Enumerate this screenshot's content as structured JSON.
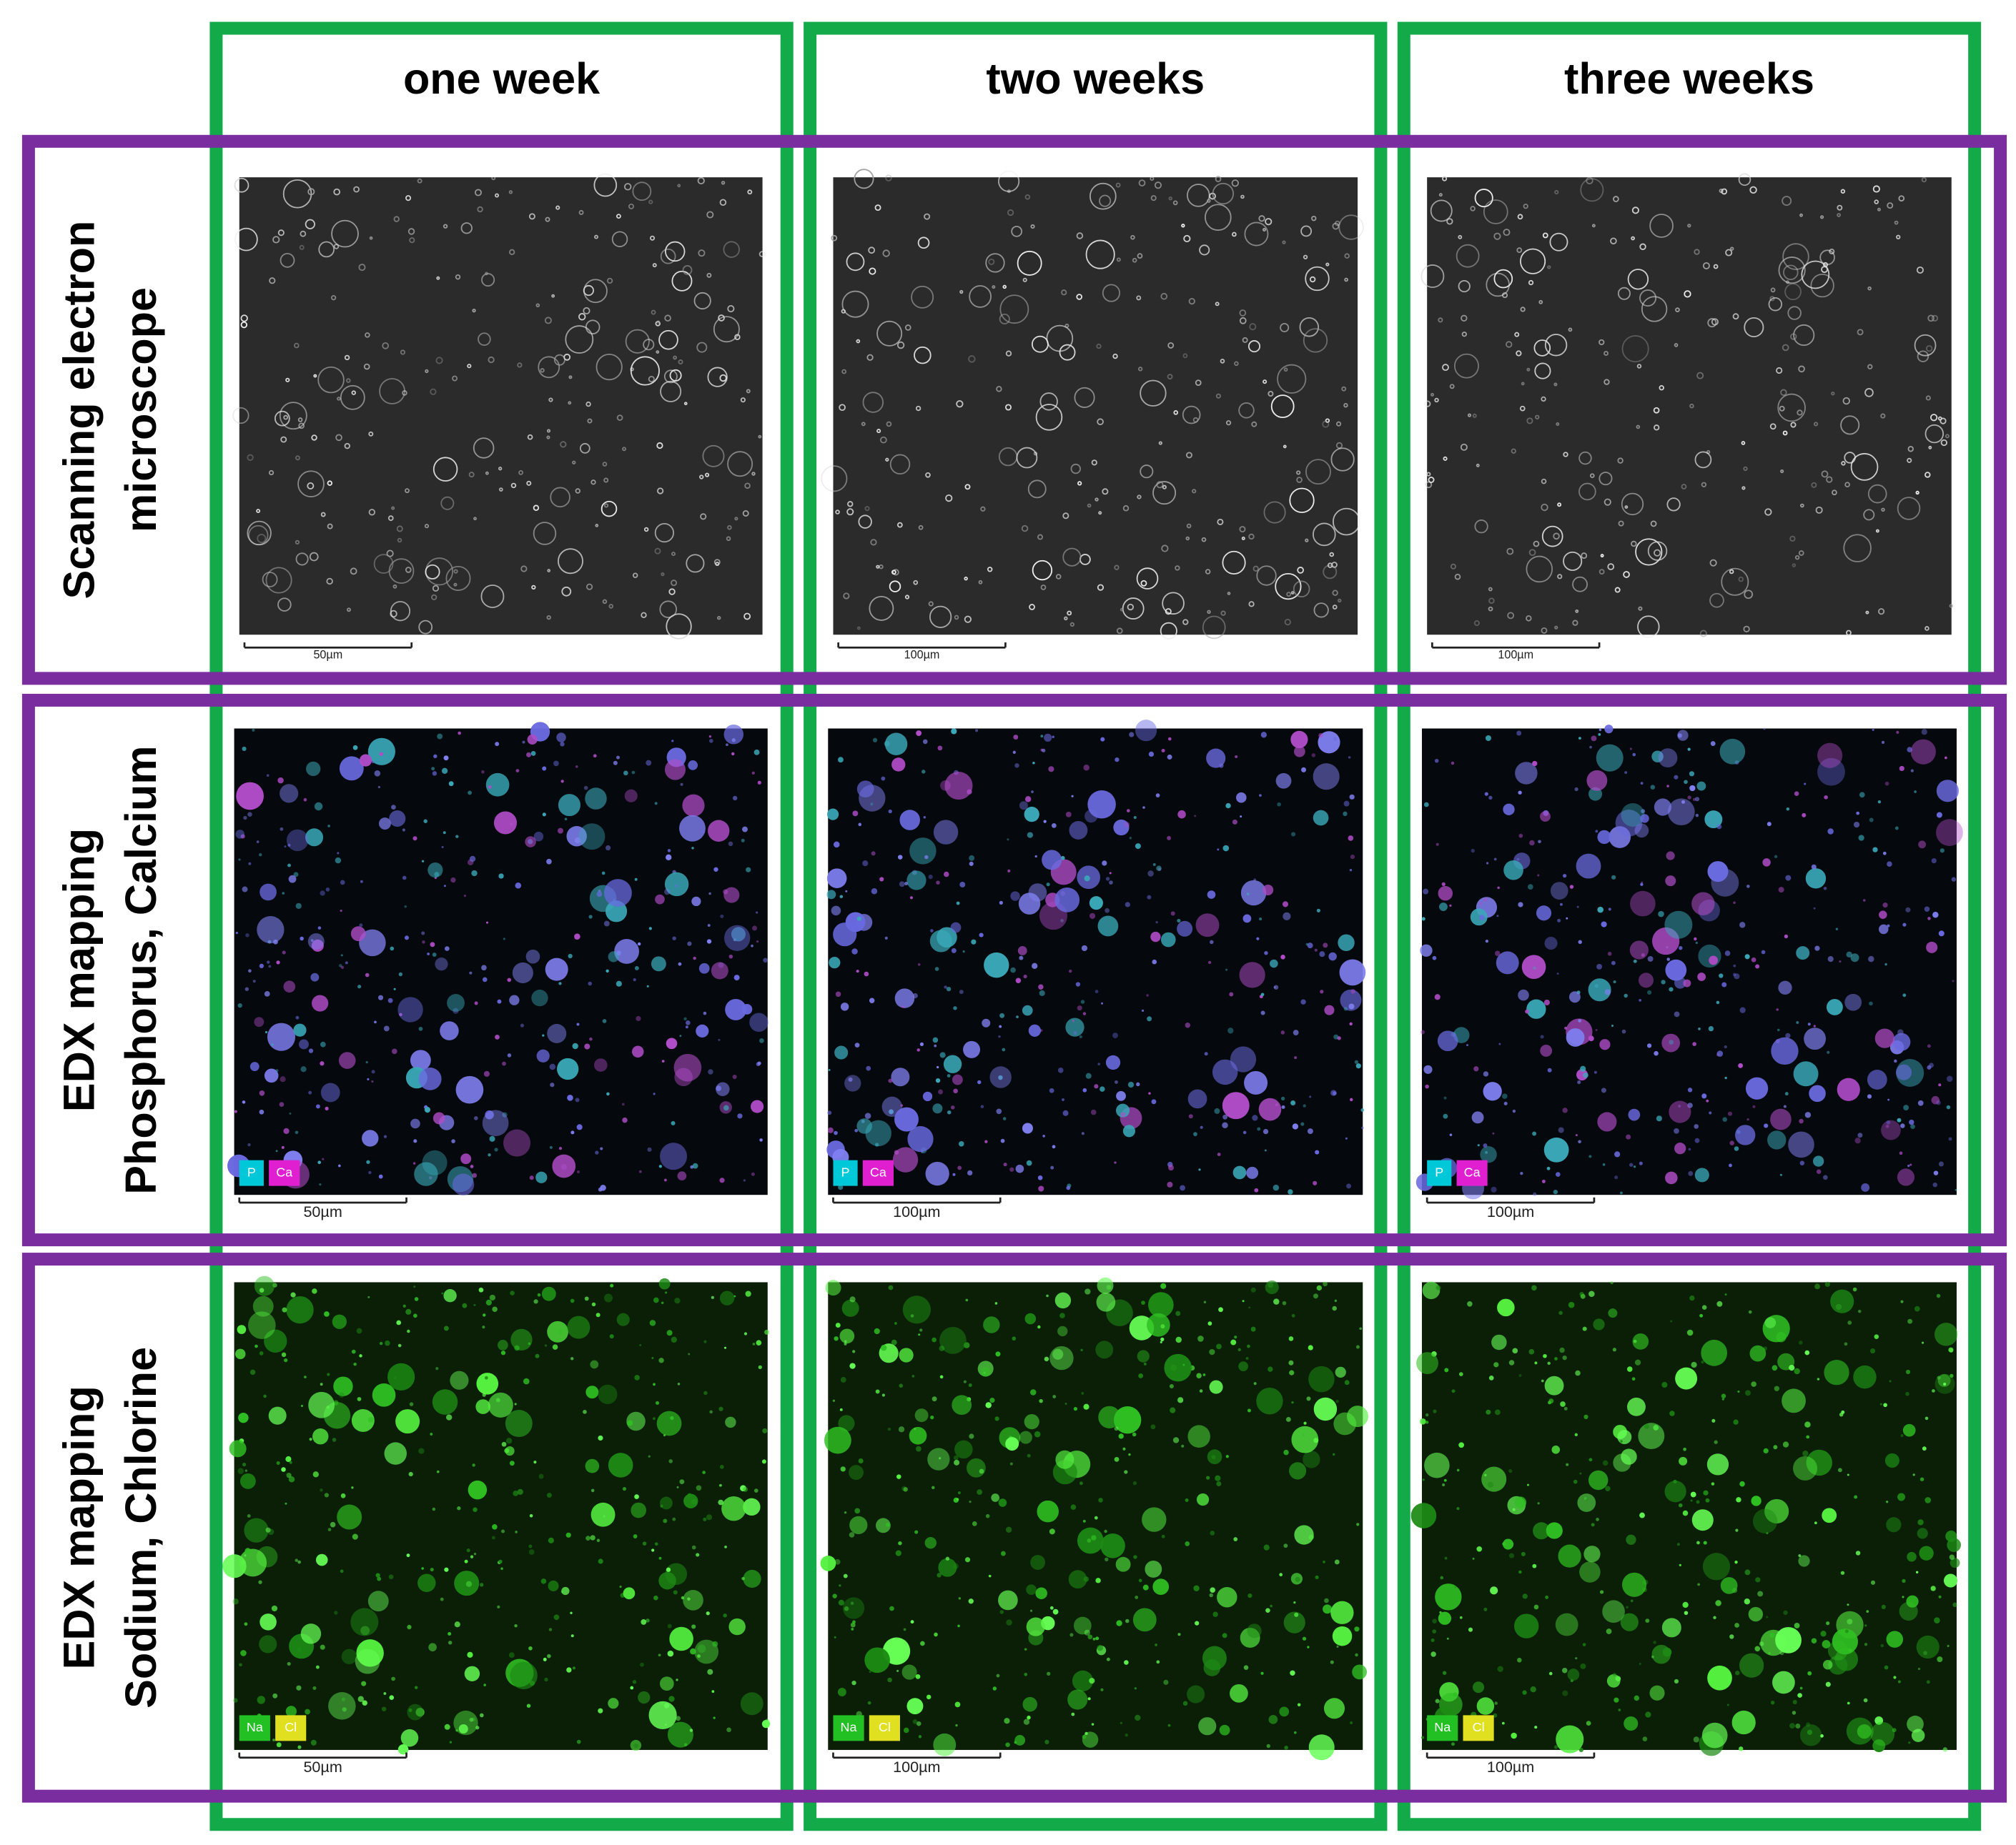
{
  "columns": [
    "one week",
    "two weeks",
    "three weeks"
  ],
  "rows": [
    {
      "label": [
        "Scanning electron",
        "microscope"
      ],
      "legend": [],
      "scales": [
        "50µm",
        "100µm",
        "100µm"
      ]
    },
    {
      "label": [
        "EDX mapping",
        "Phosphorus, Calcium"
      ],
      "legend": [
        "P",
        "Ca"
      ],
      "scales": [
        "50µm",
        "100µm",
        "100µm"
      ]
    },
    {
      "label": [
        "EDX mapping",
        "Sodium, Chlorine"
      ],
      "legend": [
        "Na",
        "Cl"
      ],
      "scales": [
        "50µm",
        "100µm",
        "100µm"
      ]
    }
  ]
}
